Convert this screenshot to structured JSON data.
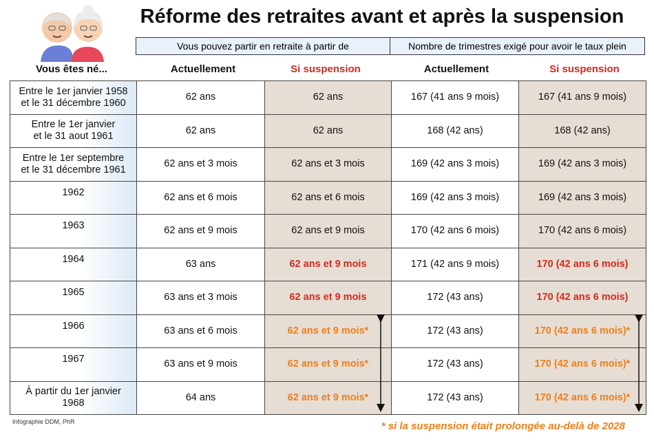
{
  "header": {
    "title": "Réforme des retraites avant et après la suspension",
    "groups": [
      "Vous pouvez partir en retraite à partir de",
      "Nombre de trimestres exigé pour avoir le taux plein"
    ]
  },
  "table": {
    "columns": [
      "Vous êtes né...",
      "Actuellement",
      "Si suspension",
      "Actuellement",
      "Si suspension"
    ],
    "rows": [
      [
        [
          "Entre le 1er janvier 1958",
          "et le 31 décembre 1960"
        ],
        "62 ans",
        "62 ans",
        "167 (41 ans 9 mois)",
        "167 (41 ans 9 mois)"
      ],
      [
        [
          "Entre le 1er janvier",
          "et le 31 aout 1961"
        ],
        "62 ans",
        "62 ans",
        "168 (42 ans)",
        "168 (42 ans)"
      ],
      [
        [
          "Entre le 1er septembre",
          "et le 31 décembre 1961"
        ],
        "62 ans et 3 mois",
        "62 ans et 3 mois",
        "169 (42 ans 3 mois)",
        "169 (42 ans 3 mois)"
      ],
      [
        [
          "1962"
        ],
        "62 ans et 6 mois",
        "62 ans et 6 mois",
        "169 (42 ans 3 mois)",
        "169 (42 ans 3 mois)"
      ],
      [
        [
          "1963"
        ],
        "62 ans et 9 mois",
        "62 ans et 9 mois",
        "170 (42 ans 6 mois)",
        "170 (42 ans 6 mois)"
      ],
      [
        [
          "1964"
        ],
        "63 ans",
        "62 ans et 9 mois",
        "171 (42 ans 9 mois)",
        "170 (42 ans 6 mois)"
      ],
      [
        [
          "1965"
        ],
        "63 ans et 3 mois",
        "62 ans et 9 mois",
        "172 (43 ans)",
        "170 (42 ans 6 mois)"
      ],
      [
        [
          "1966"
        ],
        "63 ans et 6 mois",
        "62 ans et 9 mois*",
        "172 (43 ans)",
        "170 (42 ans 6 mois)*"
      ],
      [
        [
          "1967"
        ],
        "63 ans et 9 mois",
        "62 ans et 9 mois*",
        "172 (43 ans)",
        "170 (42 ans 6 mois)*"
      ],
      [
        [
          "À partir du 1er janvier",
          "1968"
        ],
        "64 ans",
        "62 ans et 9 mois*",
        "172 (43 ans)",
        "170 (42 ans 6 mois)*"
      ]
    ]
  },
  "footer": {
    "note": "* si la suspension était prolongée au-delà de 2028",
    "credit": "Infographie DDM, PhR"
  }
}
